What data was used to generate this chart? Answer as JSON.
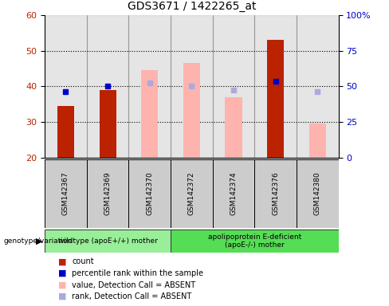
{
  "title": "GDS3671 / 1422265_at",
  "samples": [
    "GSM142367",
    "GSM142369",
    "GSM142370",
    "GSM142372",
    "GSM142374",
    "GSM142376",
    "GSM142380"
  ],
  "ylim_left": [
    20,
    60
  ],
  "ylim_right": [
    0,
    100
  ],
  "yticks_left": [
    20,
    30,
    40,
    50,
    60
  ],
  "yticks_right": [
    0,
    25,
    50,
    75,
    100
  ],
  "red_bars": {
    "GSM142367": 34.5,
    "GSM142369": 39.0,
    "GSM142376": 53.0
  },
  "pink_bars": {
    "GSM142370": 44.5,
    "GSM142372": 46.5,
    "GSM142374": 37.0,
    "GSM142380": 29.5
  },
  "blue_squares": {
    "GSM142367": 38.5,
    "GSM142369": 40.0,
    "GSM142376": 41.5
  },
  "light_blue_squares": {
    "GSM142370": 41.0,
    "GSM142372": 40.0,
    "GSM142374": 39.0,
    "GSM142380": 38.5
  },
  "group1_samples": [
    "GSM142367",
    "GSM142369",
    "GSM142370"
  ],
  "group2_samples": [
    "GSM142372",
    "GSM142374",
    "GSM142376",
    "GSM142380"
  ],
  "group1_label": "wildtype (apoE+/+) mother",
  "group2_label": "apolipoprotein E-deficient\n(apoE-/-) mother",
  "group_label_prefix": "genotype/variation",
  "red_color": "#BB2200",
  "pink_color": "#FFB3AE",
  "blue_color": "#0000CC",
  "light_blue_color": "#AAAADD",
  "bar_width": 0.4,
  "col_bg_color": "#CCCCCC",
  "group1_bg": "#99EE99",
  "group2_bg": "#55DD55",
  "group_border": "#333333",
  "legend_items": [
    {
      "color": "#BB2200",
      "label": "count"
    },
    {
      "color": "#0000CC",
      "label": "percentile rank within the sample"
    },
    {
      "color": "#FFB3AE",
      "label": "value, Detection Call = ABSENT"
    },
    {
      "color": "#AAAADD",
      "label": "rank, Detection Call = ABSENT"
    }
  ]
}
